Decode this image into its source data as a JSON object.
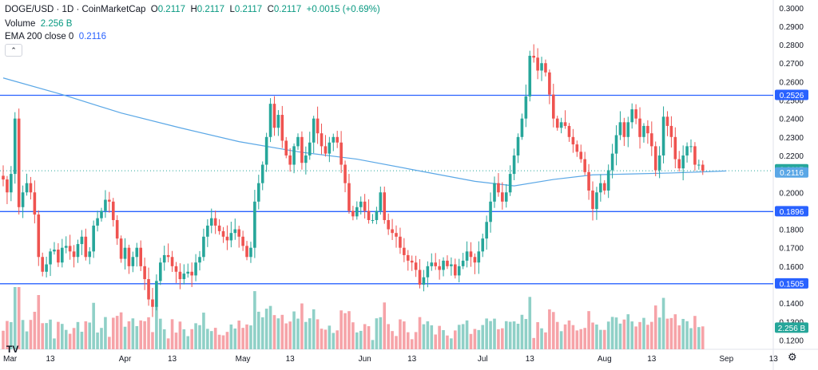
{
  "legend": {
    "symbol": "DOGE/USD · 1D · CoinMarketCap",
    "o_label": "O",
    "o": "0.2117",
    "h_label": "H",
    "h": "0.2117",
    "l_label": "L",
    "l": "0.2117",
    "c_label": "C",
    "c": "0.2117",
    "change": "+0.0015 (+0.69%)",
    "volume_label": "Volume",
    "volume": "2.256 B",
    "ema_label": "EMA 200 close 0",
    "ema": "0.2116",
    "collapse_icon": "chevron-up-icon"
  },
  "colors": {
    "up": "#26a69a",
    "down": "#ef5350",
    "up_vol": "#8fd0c7",
    "down_vol": "#f6a3a8",
    "hline": "#2962ff",
    "ema": "#5aa7e6",
    "dotted": "#26a69a"
  },
  "chart_data": {
    "type": "candlestick",
    "title": "DOGE/USD · 1D · CoinMarketCap",
    "ylim": [
      0.115,
      0.3025
    ],
    "y_ticks": [
      "0.3000",
      "0.2900",
      "0.2800",
      "0.2700",
      "0.2600",
      "0.2500",
      "0.2400",
      "0.2300",
      "0.2200",
      "0.2100",
      "0.2000",
      "0.1900",
      "0.1800",
      "0.1700",
      "0.1600",
      "0.1500",
      "0.1400",
      "0.1300",
      "0.1200"
    ],
    "x_ticks": [
      {
        "label": "Mar",
        "index": 0
      },
      {
        "label": "13",
        "index": 12
      },
      {
        "label": "Apr",
        "index": 31
      },
      {
        "label": "13",
        "index": 43
      },
      {
        "label": "May",
        "index": 61
      },
      {
        "label": "13",
        "index": 73
      },
      {
        "label": "Jun",
        "index": 92
      },
      {
        "label": "13",
        "index": 104
      },
      {
        "label": "Jul",
        "index": 122
      },
      {
        "label": "13",
        "index": 134
      },
      {
        "label": "Aug",
        "index": 153
      },
      {
        "label": "13",
        "index": 165
      },
      {
        "label": "Sep",
        "index": 184
      },
      {
        "label": "13",
        "index": 196
      }
    ],
    "horizontal_lines": [
      0.2526,
      0.1896,
      0.1505
    ],
    "price_labels": {
      "last": "0.2117",
      "ema": "0.2116",
      "volume": "2.256 B"
    },
    "ema200": [
      [
        0,
        0.262
      ],
      [
        15,
        0.253
      ],
      [
        30,
        0.243
      ],
      [
        45,
        0.235
      ],
      [
        60,
        0.2275
      ],
      [
        75,
        0.222
      ],
      [
        90,
        0.218
      ],
      [
        105,
        0.212
      ],
      [
        120,
        0.206
      ],
      [
        130,
        0.2035
      ],
      [
        140,
        0.207
      ],
      [
        150,
        0.2095
      ],
      [
        160,
        0.21
      ],
      [
        170,
        0.2105
      ],
      [
        184,
        0.2116
      ]
    ],
    "closes": [
      0.207,
      0.2,
      0.21,
      0.24,
      0.192,
      0.2,
      0.205,
      0.2,
      0.188,
      0.165,
      0.157,
      0.161,
      0.168,
      0.169,
      0.162,
      0.17,
      0.171,
      0.168,
      0.165,
      0.172,
      0.176,
      0.165,
      0.168,
      0.182,
      0.186,
      0.19,
      0.196,
      0.195,
      0.185,
      0.175,
      0.164,
      0.17,
      0.16,
      0.165,
      0.17,
      0.16,
      0.153,
      0.142,
      0.138,
      0.152,
      0.162,
      0.166,
      0.165,
      0.16,
      0.157,
      0.153,
      0.156,
      0.157,
      0.155,
      0.162,
      0.165,
      0.176,
      0.182,
      0.186,
      0.182,
      0.179,
      0.176,
      0.174,
      0.178,
      0.18,
      0.176,
      0.171,
      0.165,
      0.17,
      0.195,
      0.205,
      0.215,
      0.23,
      0.248,
      0.235,
      0.242,
      0.228,
      0.22,
      0.215,
      0.225,
      0.23,
      0.216,
      0.22,
      0.227,
      0.24,
      0.232,
      0.225,
      0.221,
      0.227,
      0.23,
      0.227,
      0.215,
      0.205,
      0.19,
      0.187,
      0.192,
      0.195,
      0.19,
      0.185,
      0.185,
      0.19,
      0.2,
      0.185,
      0.18,
      0.178,
      0.176,
      0.17,
      0.166,
      0.163,
      0.162,
      0.158,
      0.15,
      0.154,
      0.16,
      0.162,
      0.16,
      0.158,
      0.163,
      0.16,
      0.161,
      0.155,
      0.16,
      0.163,
      0.168,
      0.165,
      0.162,
      0.168,
      0.175,
      0.184,
      0.195,
      0.205,
      0.2,
      0.195,
      0.2,
      0.21,
      0.22,
      0.23,
      0.24,
      0.252,
      0.274,
      0.273,
      0.266,
      0.27,
      0.265,
      0.253,
      0.24,
      0.235,
      0.238,
      0.236,
      0.23,
      0.226,
      0.222,
      0.218,
      0.211,
      0.201,
      0.191,
      0.2,
      0.205,
      0.201,
      0.212,
      0.221,
      0.231,
      0.238,
      0.23,
      0.238,
      0.245,
      0.24,
      0.23,
      0.236,
      0.232,
      0.225,
      0.212,
      0.22,
      0.241,
      0.236,
      0.23,
      0.218,
      0.213,
      0.22,
      0.225,
      0.225,
      0.215,
      0.215,
      0.2117
    ]
  }
}
